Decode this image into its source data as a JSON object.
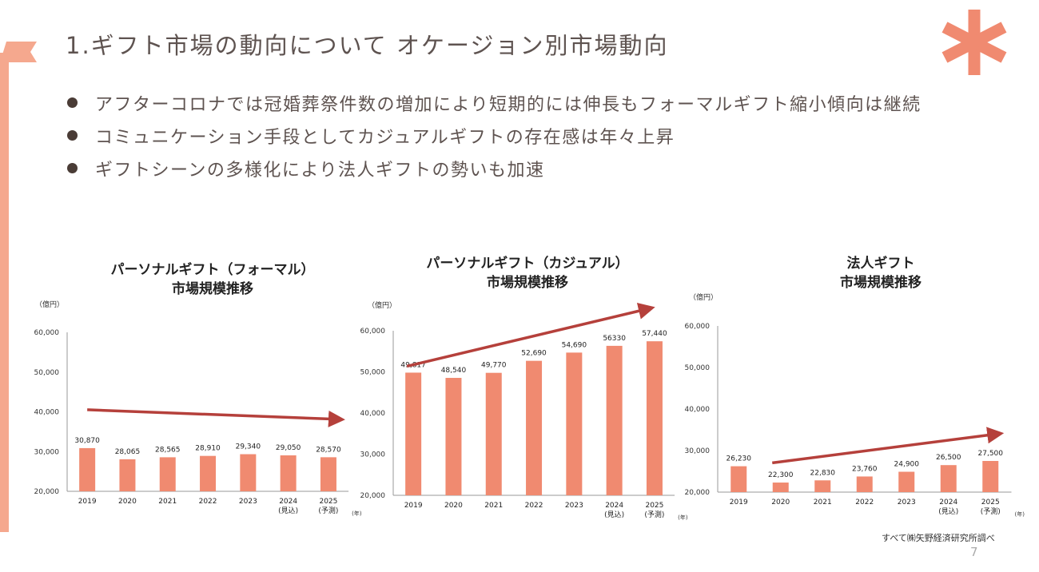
{
  "title": "1.ギフト市場の動向について オケージョン別市場動向",
  "bullets": [
    "アフターコロナでは冠婚葬祭件数の増加により短期的には伸長もフォーマルギフト縮小傾向は継続",
    "コミュニケーション手段としてカジュアルギフトの存在感は年々上昇",
    "ギフトシーンの多様化により法人ギフトの勢いも加速"
  ],
  "colors": {
    "bar": "#f08a70",
    "arrow": "#b5403b",
    "accent": "#f08a70",
    "left_bar": "#f5a88e"
  },
  "icons": {
    "asterisk": "asterisk-icon",
    "ribbon": "ribbon-icon"
  },
  "source": "すべて㈱矢野経済研究所調べ",
  "page_number": "7",
  "chart_data": [
    {
      "type": "bar",
      "title_line1": "パーソナルギフト（フォーマル）",
      "title_line2": "市場規模推移",
      "unit_label": "（億円）",
      "year_label": "(年)",
      "categories": [
        "2019",
        "2020",
        "2021",
        "2022",
        "2023",
        "2024",
        "2025"
      ],
      "category_sub": [
        "",
        "",
        "",
        "",
        "",
        "(見込)",
        "(予測)"
      ],
      "values": [
        30870,
        28065,
        28565,
        28910,
        29340,
        29050,
        28570
      ],
      "value_labels": [
        "30,870",
        "28,065",
        "28,565",
        "28,910",
        "29,340",
        "29,050",
        "28,570"
      ],
      "yticks": [
        "20,000",
        "30,000",
        "40,000",
        "50,000",
        "60,000"
      ],
      "ylim": [
        20000,
        60000
      ],
      "trend": "down"
    },
    {
      "type": "bar",
      "title_line1": "パーソナルギフト（カジュアル）",
      "title_line2": "市場規模推移",
      "unit_label": "（億円）",
      "year_label": "(年)",
      "categories": [
        "2019",
        "2020",
        "2021",
        "2022",
        "2023",
        "2024",
        "2025"
      ],
      "category_sub": [
        "",
        "",
        "",
        "",
        "",
        "(見込)",
        "(予測)"
      ],
      "values": [
        49817,
        48540,
        49770,
        52690,
        54690,
        56330,
        57440
      ],
      "value_labels": [
        "49,817",
        "48,540",
        "49,770",
        "52,690",
        "54,690",
        "56330",
        "57,440"
      ],
      "yticks": [
        "20,000",
        "30,000",
        "40,000",
        "50,000",
        "60,000"
      ],
      "ylim": [
        20000,
        60000
      ],
      "trend": "up"
    },
    {
      "type": "bar",
      "title_line1": "法人ギフト",
      "title_line2": "市場規模推移",
      "unit_label": "（億円）",
      "year_label": "(年)",
      "categories": [
        "2019",
        "2020",
        "2021",
        "2022",
        "2023",
        "2024",
        "2025"
      ],
      "category_sub": [
        "",
        "",
        "",
        "",
        "",
        "(見込)",
        "(予測)"
      ],
      "values": [
        26230,
        22300,
        22830,
        23760,
        24900,
        26500,
        27500
      ],
      "value_labels": [
        "26,230",
        "22,300",
        "22,830",
        "23,760",
        "24,900",
        "26,500",
        "27,500"
      ],
      "yticks": [
        "20,000",
        "30,000",
        "40,000",
        "50,000",
        "60,000"
      ],
      "ylim": [
        20000,
        60000
      ],
      "trend": "up"
    }
  ]
}
